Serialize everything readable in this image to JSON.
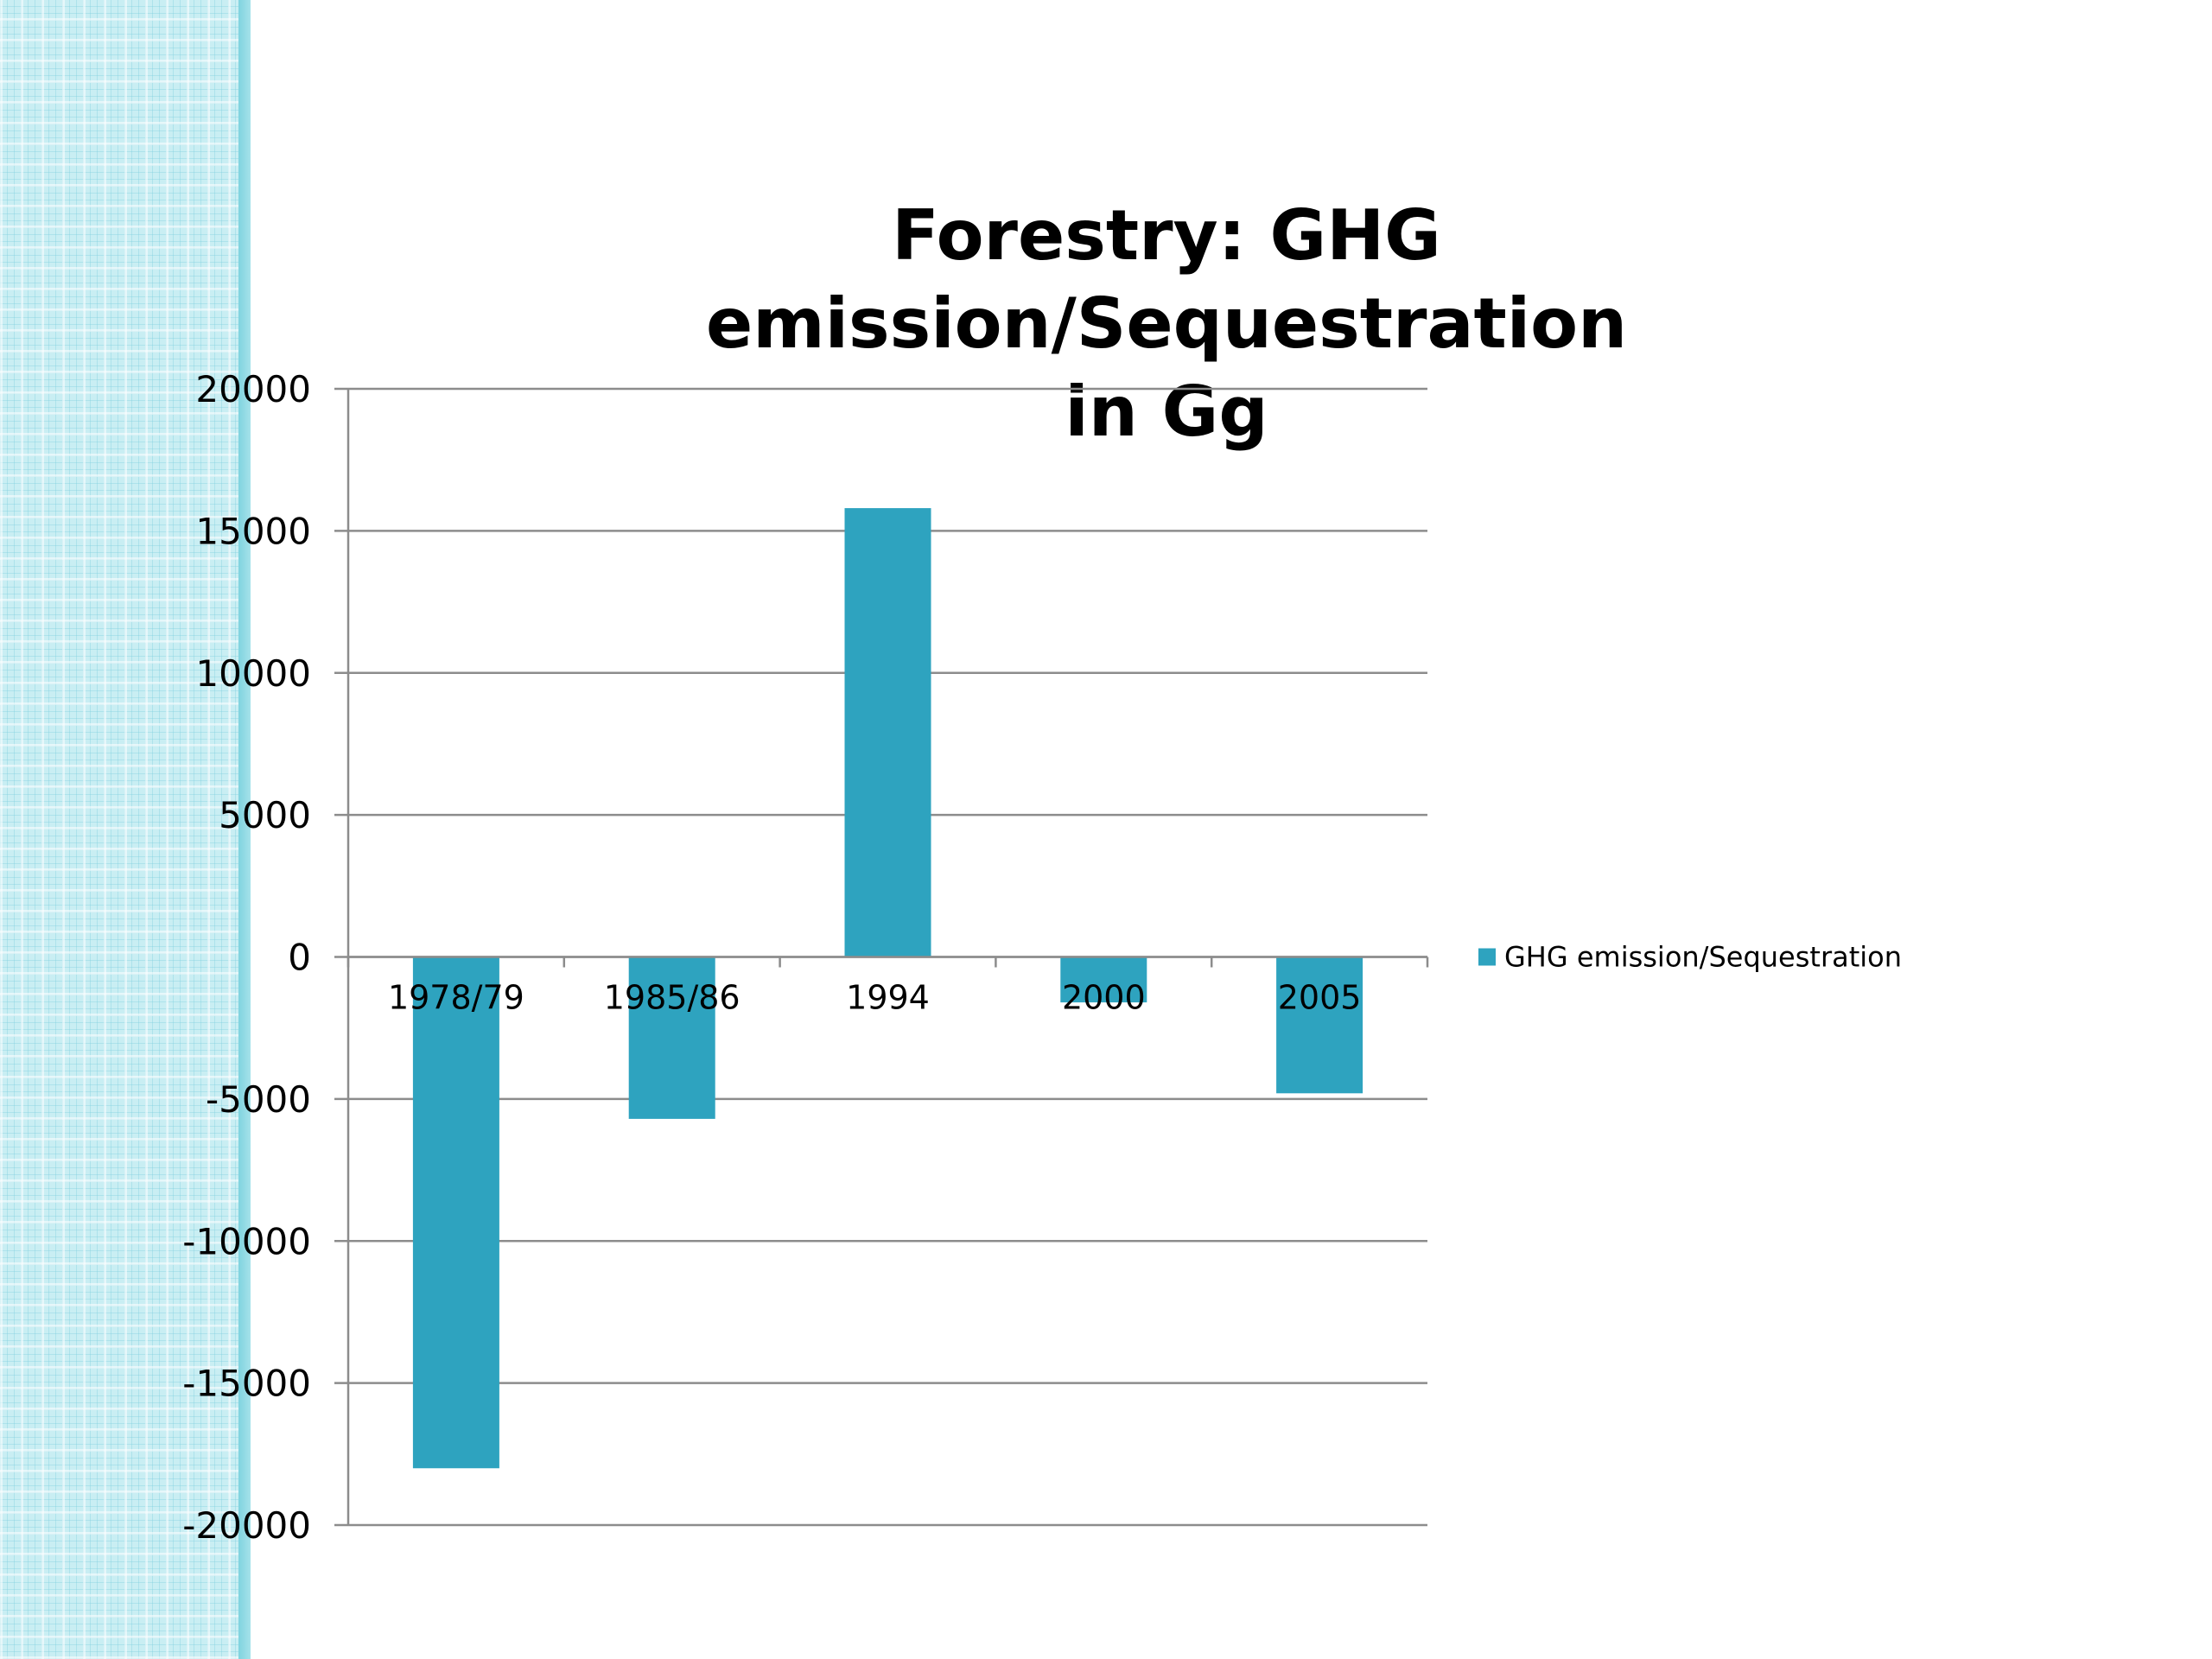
{
  "chart_data": {
    "type": "bar",
    "title": "Forestry:  GHG emission/Sequestration in Gg",
    "categories": [
      "1978/79",
      "1985/86",
      "1994",
      "2000",
      "2005"
    ],
    "series": [
      {
        "name": "GHG emission/Sequestration",
        "values": [
          -18000,
          -5700,
          15800,
          -1600,
          -4800
        ]
      }
    ],
    "ylim": [
      -20000,
      20000
    ],
    "yticks": [
      "20000",
      "15000",
      "10000",
      "5000",
      "0",
      "-5000",
      "-10000",
      "-15000",
      "-20000"
    ],
    "ytick_values": [
      20000,
      15000,
      10000,
      5000,
      0,
      -5000,
      -10000,
      -15000,
      -20000
    ],
    "xlabel": "",
    "ylabel": "",
    "grid": true,
    "legend_position": "right",
    "colors": {
      "bar": "#2ea3bf",
      "grid": "#8c8c8c"
    }
  }
}
